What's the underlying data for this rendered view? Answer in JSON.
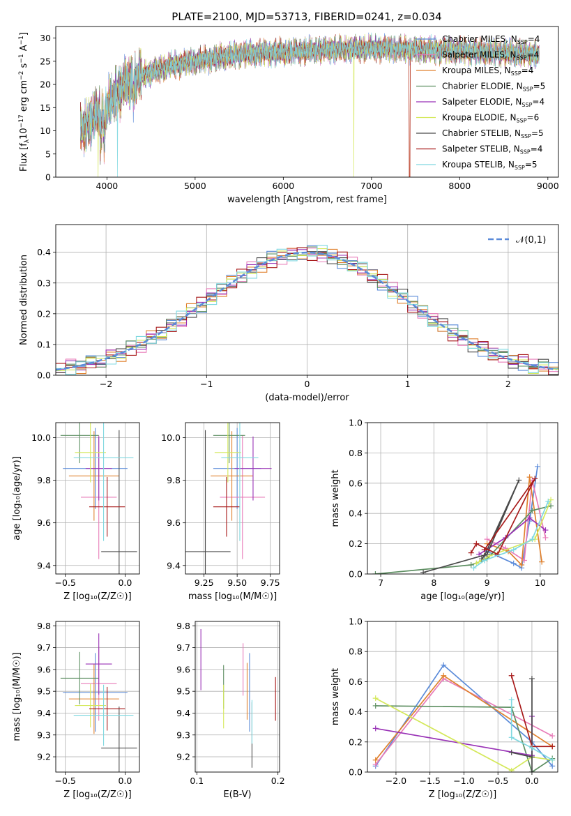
{
  "figure_title": "PLATE=2100, MJD=53713, FIBERID=0241, z=0.034",
  "legend_fits": [
    {
      "label": "Chabrier MILES, N",
      "sub": "SSP",
      "tail": "=4",
      "color": "#5b8bd9"
    },
    {
      "label": "Salpeter MILES, N",
      "sub": "SSP",
      "tail": "=4",
      "color": "#e87cb9"
    },
    {
      "label": "Kroupa MILES, N",
      "sub": "SSP",
      "tail": "=4",
      "color": "#e0812e"
    },
    {
      "label": "Chabrier ELODIE, N",
      "sub": "SSP",
      "tail": "=5",
      "color": "#5e8f62"
    },
    {
      "label": "Salpeter ELODIE, N",
      "sub": "SSP",
      "tail": "=4",
      "color": "#9932b6"
    },
    {
      "label": "Kroupa ELODIE, N",
      "sub": "SSP",
      "tail": "=6",
      "color": "#d4e85a"
    },
    {
      "label": "Chabrier STELIB, N",
      "sub": "SSP",
      "tail": "=5",
      "color": "#4a4a4a"
    },
    {
      "label": "Salpeter STELIB, N",
      "sub": "SSP",
      "tail": "=4",
      "color": "#a81b1b"
    },
    {
      "label": "Kroupa STELIB, N",
      "sub": "SSP",
      "tail": "=5",
      "color": "#7fd8e0"
    }
  ],
  "chart_data": [
    {
      "id": "spectrum",
      "type": "line",
      "xlabel": "wavelength [Angstrom, rest frame]",
      "ylabel_parts": [
        "Flux [f",
        "λ",
        "10",
        "−17",
        " erg cm",
        "−2",
        " s",
        "−1",
        " A",
        "−1",
        "]"
      ],
      "xlim": [
        3420,
        9120
      ],
      "ylim": [
        0,
        32.5
      ],
      "xticks": [
        4000,
        5000,
        6000,
        7000,
        8000,
        9000
      ],
      "yticks": [
        0,
        5,
        10,
        15,
        20,
        25,
        30
      ],
      "x_range": [
        3700,
        8900
      ],
      "continuum_anchors": [
        [
          3700,
          10
        ],
        [
          3800,
          12
        ],
        [
          3900,
          14
        ],
        [
          4000,
          15
        ],
        [
          4100,
          18
        ],
        [
          4200,
          20
        ],
        [
          4400,
          22
        ],
        [
          4700,
          24
        ],
        [
          5000,
          25
        ],
        [
          5500,
          26.5
        ],
        [
          6000,
          27
        ],
        [
          6500,
          27.5
        ],
        [
          7000,
          27.8
        ],
        [
          7500,
          27.5
        ],
        [
          8000,
          27.2
        ],
        [
          8500,
          26.8
        ],
        [
          8900,
          26.5
        ]
      ]
    },
    {
      "id": "residual_hist",
      "type": "step",
      "xlabel": "(data-model)/error",
      "ylabel": "Normed distribution",
      "xlim": [
        -2.5,
        2.5
      ],
      "ylim": [
        0,
        0.49
      ],
      "xticks": [
        -2,
        -1,
        0,
        1,
        2
      ],
      "yticks": [
        0.0,
        0.1,
        0.2,
        0.3,
        0.4
      ],
      "legend": "𝒩(0,1)",
      "bin_width": 0.1,
      "gaussian": {
        "mean": 0,
        "sigma": 1
      }
    },
    {
      "id": "age_vs_z",
      "type": "errorbar",
      "xlabel": "Z [log₁₀(Z/Z☉)]",
      "ylabel": "age  [log₁₀(age/yr)]",
      "xlim": [
        -0.58,
        0.12
      ],
      "ylim": [
        9.36,
        10.07
      ],
      "xticks": [
        -0.5,
        0.0
      ],
      "xtick_labels": [
        "−0.5",
        "0.0"
      ],
      "yticks": [
        9.4,
        9.6,
        9.8,
        10.0
      ],
      "points": [
        {
          "x": -0.25,
          "y": 9.855,
          "xerr": 0.27,
          "yerr": 0.19
        },
        {
          "x": -0.22,
          "y": 9.72,
          "xerr": 0.15,
          "yerr": 0.29
        },
        {
          "x": -0.26,
          "y": 9.82,
          "xerr": 0.21,
          "yerr": 0.21
        },
        {
          "x": -0.38,
          "y": 10.01,
          "xerr": 0.16,
          "yerr": 0.13
        },
        {
          "x": -0.22,
          "y": 9.855,
          "xerr": 0.11,
          "yerr": 0.15
        },
        {
          "x": -0.29,
          "y": 9.93,
          "xerr": 0.13,
          "yerr": 0.14
        },
        {
          "x": -0.05,
          "y": 9.465,
          "xerr": 0.15,
          "yerr": 0.57
        },
        {
          "x": -0.15,
          "y": 9.675,
          "xerr": 0.15,
          "yerr": 0.14
        },
        {
          "x": -0.18,
          "y": 9.905,
          "xerr": 0.25,
          "yerr": 0.39
        }
      ]
    },
    {
      "id": "age_vs_mass",
      "type": "errorbar",
      "xlabel": "mass [log₁₀(M/M☉)]",
      "ylabel": "",
      "xlim": [
        9.11,
        9.82
      ],
      "ylim": [
        9.36,
        10.07
      ],
      "xticks": [
        9.25,
        9.5,
        9.75
      ],
      "yticks": [
        9.4,
        9.6,
        9.8,
        10.0
      ],
      "points": [
        {
          "x": 9.5,
          "y": 9.855,
          "xerr": 0.18,
          "yerr": 0.19
        },
        {
          "x": 9.54,
          "y": 9.72,
          "xerr": 0.17,
          "yerr": 0.29
        },
        {
          "x": 9.46,
          "y": 9.82,
          "xerr": 0.16,
          "yerr": 0.21
        },
        {
          "x": 9.44,
          "y": 10.01,
          "xerr": 0.12,
          "yerr": 0.13
        },
        {
          "x": 9.62,
          "y": 9.855,
          "xerr": 0.14,
          "yerr": 0.15
        },
        {
          "x": 9.43,
          "y": 9.93,
          "xerr": 0.1,
          "yerr": 0.14
        },
        {
          "x": 9.26,
          "y": 9.465,
          "xerr": 0.19,
          "yerr": 0.57
        },
        {
          "x": 9.42,
          "y": 9.675,
          "xerr": 0.1,
          "yerr": 0.14
        },
        {
          "x": 9.52,
          "y": 9.905,
          "xerr": 0.14,
          "yerr": 0.39
        }
      ]
    },
    {
      "id": "massweight_vs_age",
      "type": "line",
      "xlabel": "age  [log₁₀(age/yr)]",
      "ylabel": "mass weight",
      "xlim": [
        6.75,
        10.33
      ],
      "ylim": [
        0,
        1.0
      ],
      "xticks": [
        7,
        8,
        9,
        10
      ],
      "yticks": [
        0.0,
        0.2,
        0.4,
        0.6,
        0.8,
        1.0
      ],
      "series": [
        {
          "points": [
            [
              9.0,
              0.15
            ],
            [
              9.5,
              0.07
            ],
            [
              9.65,
              0.04
            ],
            [
              9.8,
              0.35
            ],
            [
              9.95,
              0.71
            ]
          ]
        },
        {
          "points": [
            [
              9.0,
              0.23
            ],
            [
              9.35,
              0.17
            ],
            [
              9.7,
              0.09
            ],
            [
              9.85,
              0.62
            ],
            [
              10.1,
              0.24
            ]
          ]
        },
        {
          "points": [
            [
              9.0,
              0.2
            ],
            [
              9.4,
              0.15
            ],
            [
              9.65,
              0.06
            ],
            [
              9.8,
              0.64
            ],
            [
              10.03,
              0.08
            ]
          ]
        },
        {
          "points": [
            [
              6.9,
              0.0
            ],
            [
              8.7,
              0.06
            ],
            [
              9.0,
              0.1
            ],
            [
              9.85,
              0.42
            ],
            [
              10.2,
              0.45
            ]
          ]
        },
        {
          "points": [
            [
              8.85,
              0.13
            ],
            [
              9.35,
              0.24
            ],
            [
              9.8,
              0.37
            ],
            [
              10.1,
              0.29
            ]
          ]
        },
        {
          "points": [
            [
              8.8,
              0.07
            ],
            [
              8.9,
              0.09
            ],
            [
              9.05,
              0.12
            ],
            [
              9.9,
              0.23
            ],
            [
              10.2,
              0.49
            ]
          ]
        },
        {
          "points": [
            [
              7.8,
              0.01
            ],
            [
              9.0,
              0.13
            ],
            [
              9.6,
              0.62
            ],
            [
              8.95,
              0.12
            ],
            [
              8.9,
              0.1
            ]
          ]
        },
        {
          "points": [
            [
              8.7,
              0.14
            ],
            [
              8.8,
              0.2
            ],
            [
              9.2,
              0.13
            ],
            [
              9.9,
              0.63
            ],
            [
              8.95,
              0.16
            ]
          ]
        },
        {
          "points": [
            [
              8.75,
              0.04
            ],
            [
              8.95,
              0.09
            ],
            [
              9.5,
              0.16
            ],
            [
              9.85,
              0.23
            ],
            [
              10.15,
              0.48
            ]
          ]
        }
      ]
    },
    {
      "id": "mass_vs_z",
      "type": "errorbar",
      "xlabel": "Z [log₁₀(Z/Z☉)]",
      "ylabel": "mass [log₁₀(M/M☉)]",
      "xlim": [
        -0.58,
        0.12
      ],
      "ylim": [
        9.13,
        9.82
      ],
      "xticks": [
        -0.5,
        0.0
      ],
      "xtick_labels": [
        "−0.5",
        "0.0"
      ],
      "yticks": [
        9.2,
        9.3,
        9.4,
        9.5,
        9.6,
        9.7,
        9.8
      ],
      "points": [
        {
          "x": -0.25,
          "y": 9.495,
          "xerr": 0.27,
          "yerr": 0.18
        },
        {
          "x": -0.22,
          "y": 9.535,
          "xerr": 0.15,
          "yerr": 0.17
        },
        {
          "x": -0.26,
          "y": 9.465,
          "xerr": 0.21,
          "yerr": 0.16
        },
        {
          "x": -0.38,
          "y": 9.56,
          "xerr": 0.16,
          "yerr": 0.12
        },
        {
          "x": -0.22,
          "y": 9.625,
          "xerr": 0.11,
          "yerr": 0.14
        },
        {
          "x": -0.29,
          "y": 9.435,
          "xerr": 0.13,
          "yerr": 0.1
        },
        {
          "x": -0.05,
          "y": 9.24,
          "xerr": 0.15,
          "yerr": 0.19
        },
        {
          "x": -0.15,
          "y": 9.42,
          "xerr": 0.15,
          "yerr": 0.1
        },
        {
          "x": -0.18,
          "y": 9.39,
          "xerr": 0.25,
          "yerr": 0.14
        }
      ]
    },
    {
      "id": "mass_vs_ebv",
      "type": "errorbar",
      "xlabel": "E(B-V)",
      "ylabel": "",
      "xlim": [
        0.098,
        0.202
      ],
      "ylim": [
        9.13,
        9.82
      ],
      "xticks": [
        0.1,
        0.2
      ],
      "yticks": [
        9.2,
        9.3,
        9.4,
        9.5,
        9.6,
        9.7,
        9.8
      ],
      "points": [
        {
          "x": 0.165,
          "y": 9.495,
          "xerr": 0,
          "yerr": 0.18
        },
        {
          "x": 0.157,
          "y": 9.6,
          "xerr": 0,
          "yerr": 0.12
        },
        {
          "x": 0.162,
          "y": 9.5,
          "xerr": 0,
          "yerr": 0.13
        },
        {
          "x": 0.133,
          "y": 9.52,
          "xerr": 0,
          "yerr": 0.1
        },
        {
          "x": 0.105,
          "y": 9.645,
          "xerr": 0,
          "yerr": 0.14
        },
        {
          "x": 0.133,
          "y": 9.43,
          "xerr": 0,
          "yerr": 0.1
        },
        {
          "x": 0.168,
          "y": 9.3,
          "xerr": 0,
          "yerr": 0.15
        },
        {
          "x": 0.197,
          "y": 9.465,
          "xerr": 0,
          "yerr": 0.1
        },
        {
          "x": 0.168,
          "y": 9.36,
          "xerr": 0,
          "yerr": 0.1
        }
      ]
    },
    {
      "id": "massweight_vs_z",
      "type": "line",
      "xlabel": "Z [log₁₀(Z/Z☉)]",
      "ylabel": "mass weight",
      "xlim": [
        -2.42,
        0.38
      ],
      "ylim": [
        0,
        1.0
      ],
      "xticks": [
        -2.0,
        -1.5,
        -1.0,
        -0.5,
        0.0
      ],
      "xtick_labels": [
        "−2.0",
        "−1.5",
        "−1.0",
        "−0.5",
        "0.0"
      ],
      "yticks": [
        0.0,
        0.2,
        0.4,
        0.6,
        0.8,
        1.0
      ],
      "series": [
        {
          "points": [
            [
              -2.3,
              0.04
            ],
            [
              -1.3,
              0.71
            ],
            [
              0.0,
              0.2
            ],
            [
              0.3,
              0.04
            ]
          ]
        },
        {
          "points": [
            [
              -2.3,
              0.05
            ],
            [
              -1.3,
              0.62
            ],
            [
              0.3,
              0.24
            ]
          ]
        },
        {
          "points": [
            [
              -2.3,
              0.08
            ],
            [
              -1.3,
              0.64
            ],
            [
              0.3,
              0.17
            ]
          ]
        },
        {
          "points": [
            [
              -2.3,
              0.44
            ],
            [
              -0.3,
              0.43
            ],
            [
              0.0,
              0.0
            ],
            [
              0.3,
              0.09
            ]
          ]
        },
        {
          "points": [
            [
              -2.3,
              0.29
            ],
            [
              0.0,
              0.11
            ],
            [
              0.0,
              0.37
            ]
          ]
        },
        {
          "points": [
            [
              -2.3,
              0.49
            ],
            [
              -0.3,
              0.01
            ],
            [
              0.0,
              0.1
            ],
            [
              0.3,
              0.08
            ]
          ]
        },
        {
          "points": [
            [
              0.0,
              0.62
            ],
            [
              0.0,
              0.0
            ],
            [
              0.0,
              0.1
            ],
            [
              -0.3,
              0.13
            ]
          ]
        },
        {
          "points": [
            [
              -0.3,
              0.64
            ],
            [
              0.0,
              0.17
            ],
            [
              0.3,
              0.17
            ]
          ]
        },
        {
          "points": [
            [
              -0.3,
              0.48
            ],
            [
              -0.3,
              0.23
            ],
            [
              0.0,
              0.16
            ],
            [
              0.3,
              0.08
            ]
          ]
        }
      ]
    }
  ]
}
